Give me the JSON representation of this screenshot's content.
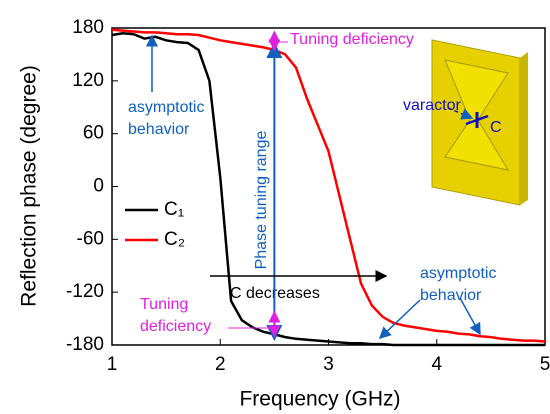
{
  "chart_data": {
    "type": "line",
    "x_label": "Frequency (GHz)",
    "y_label": "Reflection phase (degree)",
    "x": [
      1.0,
      1.1,
      1.2,
      1.3,
      1.4,
      1.5,
      1.6,
      1.7,
      1.8,
      1.9,
      2.0,
      2.1,
      2.2,
      2.3,
      2.4,
      2.5,
      2.6,
      2.7,
      2.8,
      2.9,
      3.0,
      3.1,
      3.2,
      3.3,
      3.4,
      3.5,
      3.6,
      3.7,
      3.8,
      3.9,
      4.0,
      4.1,
      4.2,
      4.3,
      4.4,
      4.5,
      4.6,
      4.7,
      4.8,
      4.9,
      5.0
    ],
    "series": [
      {
        "name": "C₁",
        "color": "#000000",
        "values": [
          172,
          174,
          173,
          168,
          170,
          166,
          164,
          163,
          155,
          120,
          10,
          -130,
          -152,
          -160,
          -165,
          -168,
          -171,
          -173,
          -174,
          -175,
          -176,
          -177,
          -178,
          -178,
          -179,
          -179,
          -180,
          -180,
          -180,
          -180,
          -180,
          -180,
          -180,
          -180,
          -180,
          -180,
          -180,
          -180,
          -180,
          -180,
          -180
        ]
      },
      {
        "name": "C₂",
        "color": "#ff0000",
        "values": [
          178,
          177,
          176,
          175,
          175,
          174,
          173,
          173,
          172,
          169,
          166,
          164,
          162,
          160,
          158,
          155,
          150,
          135,
          100,
          70,
          40,
          -10,
          -60,
          -110,
          -135,
          -148,
          -155,
          -158,
          -160,
          -162,
          -164,
          -165,
          -167,
          -168,
          -170,
          -171,
          -173,
          -174,
          -175,
          -175,
          -176
        ]
      }
    ],
    "xlim": [
      1,
      5
    ],
    "xticks": [
      1,
      2,
      3,
      4,
      5
    ],
    "ylim": [
      -180,
      180
    ],
    "yticks": [
      -180,
      -120,
      -60,
      0,
      60,
      120,
      180
    ],
    "legend": "center-left",
    "annotations": [
      {
        "lines": [
          "Tuning deficiency"
        ],
        "color": "#e020e0"
      },
      {
        "lines": [
          "asymptotic",
          "behavior"
        ],
        "color": "#1060c0"
      },
      {
        "lines": [
          "Phase tuning range"
        ],
        "color": "#1060c0"
      },
      {
        "lines": [
          "C decreases"
        ],
        "color": "#000000"
      },
      {
        "lines": [
          "Tuning",
          "deficiency"
        ],
        "color": "#e020e0"
      },
      {
        "lines": [
          "asymptotic",
          "behavior"
        ],
        "color": "#1060c0"
      },
      {
        "lines": [
          "varactor"
        ],
        "color": "#1010c0"
      },
      {
        "lines": [
          "C"
        ],
        "color": "#1010c0"
      }
    ]
  }
}
